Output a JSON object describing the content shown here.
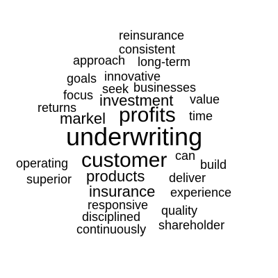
{
  "words": {
    "reinsurance": "reinsurance",
    "consistent": "consistent",
    "approach": "approach",
    "long_term": "long-term",
    "goals": "goals",
    "innovative": "innovative",
    "seek": "seek",
    "businesses": "businesses",
    "focus": "focus",
    "investment": "investment",
    "value": "value",
    "returns": "returns",
    "profits": "profits",
    "time": "time",
    "markel": "markel",
    "underwriting": "underwriting",
    "can": "can",
    "operating": "operating",
    "customer": "customer",
    "build": "build",
    "products": "products",
    "deliver": "deliver",
    "superior": "superior",
    "insurance": "insurance",
    "experience": "experience",
    "responsive": "responsive",
    "quality": "quality",
    "disciplined": "disciplined",
    "shareholder": "shareholder",
    "continuously": "continuously"
  }
}
